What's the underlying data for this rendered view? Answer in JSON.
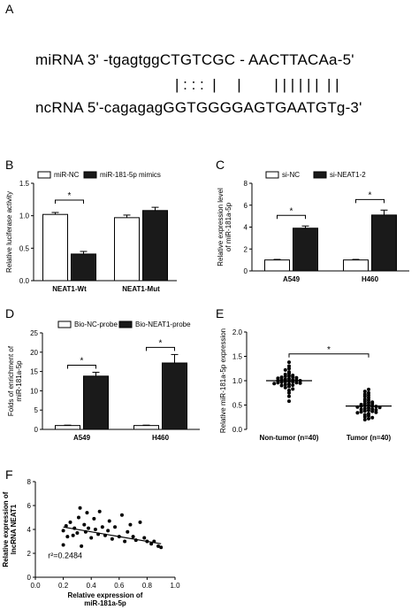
{
  "panels": {
    "A": {
      "letter": "A",
      "mirna_line": "miRNA 3' -tgagtggCTGTCGC - AACTTACAa-5'",
      "pair_line": "| : : :  |     |        | | | | | |  | |",
      "ncrna_line": "ncRNA 5'-cagagagGGTGGGGAGTGAATGTg-3'"
    },
    "B": {
      "letter": "B"
    },
    "C": {
      "letter": "C"
    },
    "D": {
      "letter": "D"
    },
    "E": {
      "letter": "E"
    },
    "F": {
      "letter": "F"
    }
  },
  "chart_data": [
    {
      "panel": "B",
      "type": "bar",
      "categories": [
        "NEAT1-Wt",
        "NEAT1-Mut"
      ],
      "series": [
        {
          "name": "miR-NC",
          "values": [
            1.02,
            0.97
          ],
          "errors": [
            0.03,
            0.04
          ],
          "fill": "#ffffff"
        },
        {
          "name": "miR-181-5p mimics",
          "values": [
            0.41,
            1.08
          ],
          "errors": [
            0.04,
            0.05
          ],
          "fill": "#1a1a1a"
        }
      ],
      "ylabel": "Relative luciferase activity",
      "ylim": [
        0,
        1.5
      ],
      "yticks": [
        "0.0",
        "0.5",
        "1.0",
        "1.5"
      ],
      "significance": [
        {
          "category": 0,
          "label": "*"
        }
      ],
      "legend": "top"
    },
    {
      "panel": "C",
      "type": "bar",
      "categories": [
        "A549",
        "H460"
      ],
      "series": [
        {
          "name": "si-NC",
          "values": [
            1.0,
            1.0
          ],
          "errors": [
            0.05,
            0.05
          ],
          "fill": "#ffffff"
        },
        {
          "name": "si-NEAT1-2",
          "values": [
            3.9,
            5.1
          ],
          "errors": [
            0.2,
            0.45
          ],
          "fill": "#1a1a1a"
        }
      ],
      "ylabel_lines": [
        "Relative expression level",
        "of miR-181a-5p"
      ],
      "ylim": [
        0,
        8
      ],
      "yticks": [
        "0",
        "2",
        "4",
        "6",
        "8"
      ],
      "significance": [
        {
          "category": 0,
          "label": "*"
        },
        {
          "category": 1,
          "label": "*"
        }
      ],
      "legend": "top"
    },
    {
      "panel": "D",
      "type": "bar",
      "categories": [
        "A549",
        "H460"
      ],
      "series": [
        {
          "name": "Bio-NC-probe",
          "values": [
            1.0,
            1.0
          ],
          "errors": [
            0.1,
            0.1
          ],
          "fill": "#ffffff"
        },
        {
          "name": "Bio-NEAT1-probe",
          "values": [
            13.8,
            17.2
          ],
          "errors": [
            1.0,
            2.2
          ],
          "fill": "#1a1a1a"
        }
      ],
      "ylabel_lines": [
        "Folds of enrichment of",
        "miR-181a-5p"
      ],
      "ylim": [
        0,
        25
      ],
      "yticks": [
        "0",
        "5",
        "10",
        "15",
        "20",
        "25"
      ],
      "significance": [
        {
          "category": 0,
          "label": "*"
        },
        {
          "category": 1,
          "label": "*"
        }
      ],
      "legend": "top"
    },
    {
      "panel": "E",
      "type": "scatter",
      "categories": [
        "Non-tumor (n=40)",
        "Tumor (n=40)"
      ],
      "means": [
        1.0,
        0.48
      ],
      "groups": [
        [
          1.38,
          1.3,
          1.25,
          1.22,
          1.18,
          1.15,
          1.13,
          1.11,
          1.1,
          1.09,
          1.08,
          1.07,
          1.06,
          1.05,
          1.04,
          1.03,
          1.02,
          1.02,
          1.01,
          1.0,
          1.0,
          0.99,
          0.98,
          0.98,
          0.97,
          0.96,
          0.96,
          0.95,
          0.94,
          0.93,
          0.92,
          0.91,
          0.9,
          0.88,
          0.86,
          0.83,
          0.8,
          0.75,
          0.68,
          0.58
        ],
        [
          0.82,
          0.78,
          0.75,
          0.72,
          0.7,
          0.68,
          0.65,
          0.62,
          0.6,
          0.58,
          0.56,
          0.55,
          0.53,
          0.52,
          0.51,
          0.5,
          0.49,
          0.48,
          0.48,
          0.47,
          0.46,
          0.45,
          0.44,
          0.43,
          0.42,
          0.41,
          0.4,
          0.39,
          0.38,
          0.37,
          0.36,
          0.35,
          0.34,
          0.32,
          0.3,
          0.28,
          0.26,
          0.24,
          0.22,
          0.2
        ]
      ],
      "ylabel": "Relative miR-181a-5p expression",
      "ylim": [
        0,
        2.0
      ],
      "yticks": [
        "0.0",
        "0.5",
        "1.0",
        "1.5",
        "2.0"
      ],
      "significance_label": "*"
    },
    {
      "panel": "F",
      "type": "scatter",
      "points": [
        [
          0.2,
          2.7
        ],
        [
          0.2,
          3.9
        ],
        [
          0.22,
          4.3
        ],
        [
          0.23,
          3.4
        ],
        [
          0.25,
          4.6
        ],
        [
          0.27,
          3.5
        ],
        [
          0.28,
          4.1
        ],
        [
          0.3,
          3.7
        ],
        [
          0.31,
          5.0
        ],
        [
          0.32,
          5.8
        ],
        [
          0.33,
          2.6
        ],
        [
          0.35,
          4.4
        ],
        [
          0.36,
          3.8
        ],
        [
          0.37,
          5.4
        ],
        [
          0.38,
          4.1
        ],
        [
          0.4,
          3.3
        ],
        [
          0.42,
          4.9
        ],
        [
          0.43,
          4.0
        ],
        [
          0.45,
          3.6
        ],
        [
          0.46,
          5.5
        ],
        [
          0.48,
          4.2
        ],
        [
          0.5,
          3.5
        ],
        [
          0.52,
          3.9
        ],
        [
          0.53,
          4.7
        ],
        [
          0.55,
          3.2
        ],
        [
          0.57,
          4.2
        ],
        [
          0.6,
          3.4
        ],
        [
          0.62,
          5.2
        ],
        [
          0.64,
          3.0
        ],
        [
          0.66,
          3.8
        ],
        [
          0.68,
          4.4
        ],
        [
          0.7,
          3.4
        ],
        [
          0.72,
          3.1
        ],
        [
          0.75,
          4.6
        ],
        [
          0.78,
          3.3
        ],
        [
          0.8,
          3.0
        ],
        [
          0.83,
          2.8
        ],
        [
          0.85,
          3.0
        ],
        [
          0.88,
          2.6
        ],
        [
          0.9,
          2.5
        ]
      ],
      "fit_line": [
        [
          0.2,
          4.2
        ],
        [
          0.9,
          2.8
        ]
      ],
      "annotation": "r²=0.2484",
      "xlabel_lines": [
        "Relative expression of",
        "miR-181a-5p"
      ],
      "ylabel_lines": [
        "Relative expression of",
        "lncRNA NEAT1"
      ],
      "xlim": [
        0,
        1.0
      ],
      "ylim": [
        0,
        8
      ],
      "xticks": [
        "0.0",
        "0.2",
        "0.4",
        "0.6",
        "0.8",
        "1.0"
      ],
      "yticks": [
        "0",
        "2",
        "4",
        "6",
        "8"
      ]
    }
  ]
}
